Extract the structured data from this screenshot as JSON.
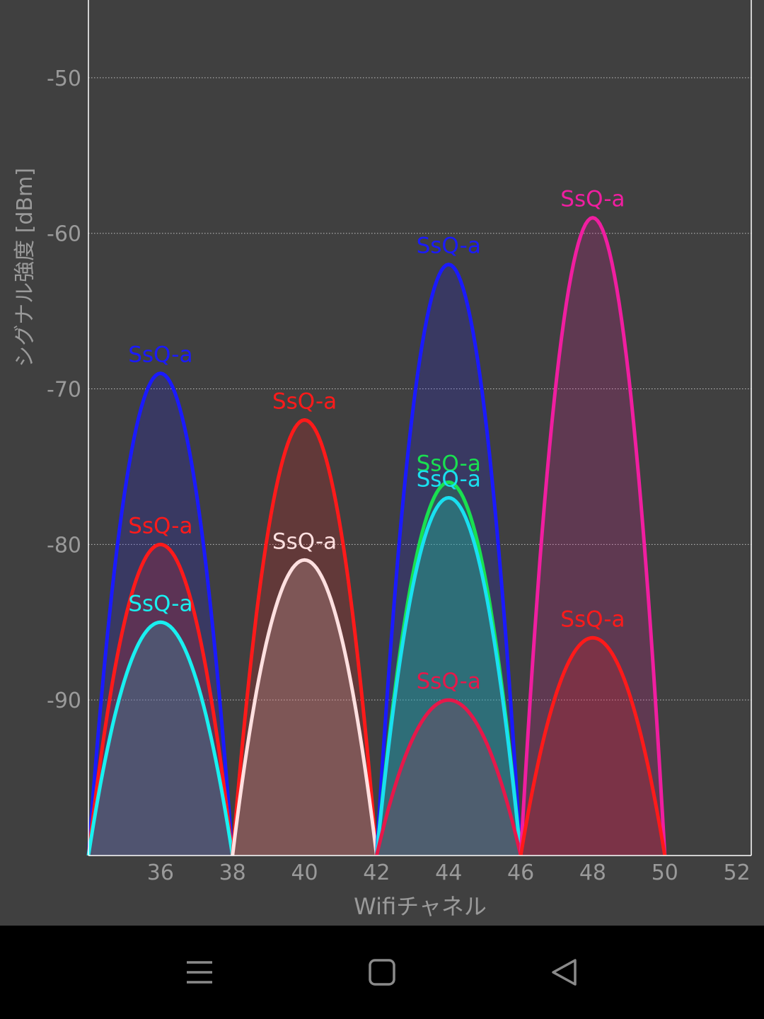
{
  "chart_data": {
    "type": "area",
    "xlabel": "Wifiチャネル",
    "ylabel": "シグナル強度 [dBm]",
    "xlim": [
      34,
      52.4
    ],
    "ylim": [
      -100,
      -45
    ],
    "x_ticks": [
      "36",
      "38",
      "40",
      "42",
      "44",
      "46",
      "48",
      "50",
      "52"
    ],
    "y_ticks": [
      "-50",
      "-60",
      "-70",
      "-80",
      "-90"
    ],
    "grid": "horizontal dotted",
    "series": [
      {
        "name": "SsQ-a",
        "channel": 36,
        "width": 4,
        "peak": -69,
        "color": "#1a1aff"
      },
      {
        "name": "SsQ-a",
        "channel": 36,
        "width": 4,
        "peak": -80,
        "color": "#ff1a1a"
      },
      {
        "name": "SsQ-a",
        "channel": 36,
        "width": 4,
        "peak": -85,
        "color": "#19f0f0"
      },
      {
        "name": "SsQ-a",
        "channel": 40,
        "width": 4,
        "peak": -72,
        "color": "#ff1a1a"
      },
      {
        "name": "SsQ-a",
        "channel": 40,
        "width": 4,
        "peak": -81,
        "color": "#ffe0e0"
      },
      {
        "name": "SsQ-a",
        "channel": 44,
        "width": 4,
        "peak": -62,
        "color": "#1a1aff"
      },
      {
        "name": "SsQ-a",
        "channel": 44,
        "width": 4,
        "peak": -76,
        "color": "#19e050"
      },
      {
        "name": "SsQ-a",
        "channel": 44,
        "width": 4,
        "peak": -77,
        "color": "#19e0f0"
      },
      {
        "name": "SsQ-a",
        "channel": 44,
        "width": 4,
        "peak": -90,
        "color": "#e6184a"
      },
      {
        "name": "SsQ-a",
        "channel": 48,
        "width": 4,
        "peak": -59,
        "color": "#f01ea0"
      },
      {
        "name": "SsQ-a",
        "channel": 48,
        "width": 4,
        "peak": -86,
        "color": "#ff1a1a"
      }
    ]
  },
  "colors": {
    "background": "#404040",
    "axis": "#ffffff",
    "grid": "#bfbfbf",
    "tick_text": "#9a9a9a",
    "nav_bar": "#000000",
    "nav_icon": "#8a8a8a"
  },
  "nav": {
    "icons": [
      "menu-icon",
      "home-icon",
      "back-icon"
    ]
  }
}
